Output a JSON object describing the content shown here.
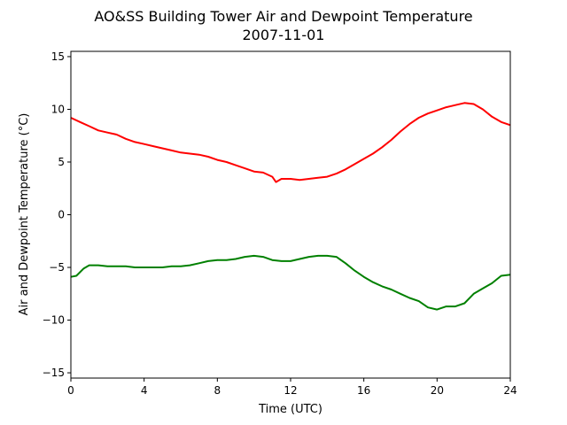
{
  "chart_data": {
    "type": "line",
    "title": "AO&SS Building Tower Air and Dewpoint Temperature",
    "subtitle": "2007-11-01",
    "xlabel": "Time (UTC)",
    "ylabel": "Air and Dewpoint Temperature (°C)",
    "xlim": [
      0,
      24
    ],
    "ylim": [
      -15.5,
      15.5
    ],
    "xticks": [
      0,
      4,
      8,
      12,
      16,
      20,
      24
    ],
    "yticks": [
      -15,
      -10,
      -5,
      0,
      5,
      10,
      15
    ],
    "grid": false,
    "legend": "none",
    "series": [
      {
        "color": "#ff0000",
        "x": [
          0,
          0.5,
          1,
          1.5,
          2,
          2.5,
          3,
          3.5,
          4,
          4.5,
          5,
          5.5,
          6,
          6.5,
          7,
          7.5,
          8,
          8.5,
          9,
          9.5,
          10,
          10.5,
          11,
          11.2,
          11.5,
          12,
          12.5,
          13,
          13.5,
          14,
          14.5,
          15,
          15.5,
          16,
          16.5,
          17,
          17.5,
          18,
          18.5,
          19,
          19.5,
          20,
          20.5,
          21,
          21.5,
          22,
          22.5,
          23,
          23.5,
          24
        ],
        "y": [
          9.2,
          8.8,
          8.4,
          8.0,
          7.8,
          7.6,
          7.2,
          6.9,
          6.7,
          6.5,
          6.3,
          6.1,
          5.9,
          5.8,
          5.7,
          5.5,
          5.2,
          5.0,
          4.7,
          4.4,
          4.1,
          4.0,
          3.6,
          3.1,
          3.4,
          3.4,
          3.3,
          3.4,
          3.5,
          3.6,
          3.9,
          4.3,
          4.8,
          5.3,
          5.8,
          6.4,
          7.1,
          7.9,
          8.6,
          9.2,
          9.6,
          9.9,
          10.2,
          10.4,
          10.6,
          10.5,
          10.0,
          9.3,
          8.8,
          8.5
        ]
      },
      {
        "color": "#008000",
        "x": [
          0,
          0.3,
          0.7,
          1,
          1.5,
          2,
          2.5,
          3,
          3.5,
          4,
          4.5,
          5,
          5.5,
          6,
          6.5,
          7,
          7.5,
          8,
          8.5,
          9,
          9.5,
          10,
          10.5,
          11,
          11.5,
          12,
          12.5,
          13,
          13.5,
          14,
          14.5,
          15,
          15.5,
          16,
          16.5,
          17,
          17.5,
          18,
          18.5,
          19,
          19.5,
          20,
          20.5,
          21,
          21.5,
          22,
          22.5,
          23,
          23.5,
          24
        ],
        "y": [
          -5.9,
          -5.8,
          -5.1,
          -4.8,
          -4.8,
          -4.9,
          -4.9,
          -4.9,
          -5.0,
          -5.0,
          -5.0,
          -5.0,
          -4.9,
          -4.9,
          -4.8,
          -4.6,
          -4.4,
          -4.3,
          -4.3,
          -4.2,
          -4.0,
          -3.9,
          -4.0,
          -4.3,
          -4.4,
          -4.4,
          -4.2,
          -4.0,
          -3.9,
          -3.9,
          -4.0,
          -4.6,
          -5.3,
          -5.9,
          -6.4,
          -6.8,
          -7.1,
          -7.5,
          -7.9,
          -8.2,
          -8.8,
          -9.0,
          -8.7,
          -8.7,
          -8.4,
          -7.5,
          -7.0,
          -6.5,
          -5.8,
          -5.7
        ]
      }
    ]
  }
}
